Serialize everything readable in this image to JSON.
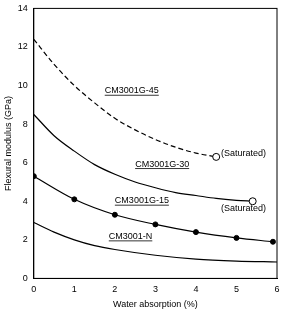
{
  "chart_data": {
    "type": "line",
    "x_label": "Water absorption (%)",
    "y_label": "Flexural modulus (GPa)",
    "xlim": [
      0,
      6
    ],
    "xticks": [
      0,
      1,
      2,
      3,
      4,
      5,
      6
    ],
    "ylim": [
      0,
      14
    ],
    "yticks": [
      0,
      2,
      4,
      6,
      8,
      10,
      12,
      14
    ],
    "grid": false,
    "series": [
      {
        "name": "CM3001G-45",
        "color": "#000000",
        "line_style": "dashed",
        "marker": "end_circle",
        "x": [
          0,
          0.5,
          1,
          1.5,
          2,
          2.5,
          3,
          3.5,
          4,
          4.5
        ],
        "values": [
          12.4,
          11.1,
          10.0,
          9.1,
          8.3,
          7.7,
          7.2,
          6.8,
          6.5,
          6.3
        ]
      },
      {
        "name": "CM3001G-30",
        "color": "#000000",
        "line_style": "solid",
        "marker": "end_circle",
        "x": [
          0,
          0.5,
          1,
          1.5,
          2,
          2.5,
          3,
          3.5,
          4,
          4.5,
          5,
          5.4
        ],
        "values": [
          8.5,
          7.4,
          6.6,
          5.9,
          5.4,
          5.0,
          4.7,
          4.45,
          4.3,
          4.15,
          4.05,
          4.0
        ]
      },
      {
        "name": "CM3001G-15",
        "color": "#000000",
        "line_style": "solid",
        "marker": "circle",
        "x": [
          0,
          1,
          2,
          3,
          4,
          5,
          5.9
        ],
        "values": [
          5.3,
          4.1,
          3.3,
          2.8,
          2.4,
          2.1,
          1.9
        ]
      },
      {
        "name": "CM3001-N",
        "color": "#000000",
        "line_style": "solid",
        "marker": "none",
        "x": [
          0,
          0.5,
          1,
          1.5,
          2,
          3,
          4,
          5,
          6
        ],
        "values": [
          2.9,
          2.4,
          2.0,
          1.7,
          1.5,
          1.2,
          1.0,
          0.9,
          0.85
        ]
      }
    ],
    "annotations": [
      {
        "text": "CM3001G-45",
        "x": 1.75,
        "y": 9.6
      },
      {
        "text": "CM3001G-30",
        "x": 2.5,
        "y": 5.8
      },
      {
        "text": "CM3001G-15",
        "x": 2.0,
        "y": 3.9
      },
      {
        "text": "CM3001-N",
        "x": 1.85,
        "y": 2.05
      },
      {
        "text": "(Saturated)",
        "x": 4.62,
        "y": 6.35
      },
      {
        "text": "(Saturated)",
        "x": 4.62,
        "y": 3.5
      }
    ]
  }
}
